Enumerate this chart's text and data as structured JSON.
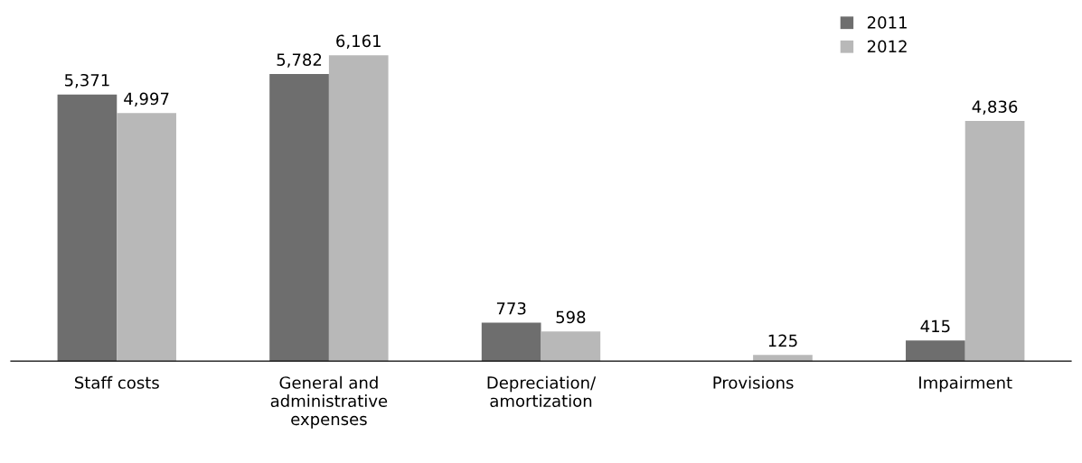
{
  "chart_data": {
    "type": "bar",
    "categories": [
      "Staff costs",
      "General and\nadministrative\nexpenses",
      "Depreciation/\namortization",
      "Provisions",
      "Impairment"
    ],
    "series": [
      {
        "name": "2011",
        "color": "#6e6e6e",
        "values": [
          5371,
          5782,
          773,
          null,
          415
        ],
        "value_labels": [
          "5,371",
          "5,782",
          "773",
          null,
          "415"
        ]
      },
      {
        "name": "2012",
        "color": "#b8b8b8",
        "values": [
          4997,
          6161,
          598,
          125,
          4836
        ],
        "value_labels": [
          "4,997",
          "6,161",
          "598",
          "125",
          "4,836"
        ]
      }
    ],
    "legend": "top right",
    "grid": false
  }
}
